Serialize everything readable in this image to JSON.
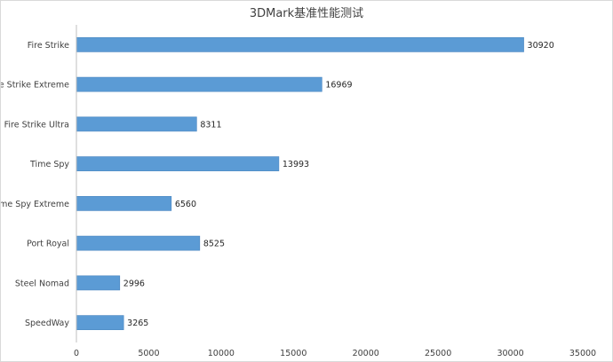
{
  "chart_data": {
    "type": "bar",
    "orientation": "horizontal",
    "title": "3DMark基准性能测试",
    "categories": [
      "Fire Strike",
      "Fire Strike Extreme",
      "Fire Strike Ultra",
      "Time Spy",
      "Time Spy Extreme",
      "Port Royal",
      "Steel Nomad",
      "SpeedWay"
    ],
    "values": [
      30920,
      16969,
      8311,
      13993,
      6560,
      8525,
      2996,
      3265
    ],
    "data_labels": [
      "30920",
      "16969",
      "8311",
      "13993",
      "6560",
      "8525",
      "2996",
      "3265"
    ],
    "xlim": [
      0,
      35000
    ],
    "x_ticks": [
      "0",
      "5000",
      "10000",
      "15000",
      "20000",
      "25000",
      "30000",
      "35000"
    ],
    "xlabel": "",
    "ylabel": "",
    "grid": false,
    "legend": "none",
    "colors": {
      "bar": "#5b9bd5",
      "bar_edge": "#4a86c0",
      "axis": "#bfbfbf",
      "text": "#404040"
    }
  }
}
